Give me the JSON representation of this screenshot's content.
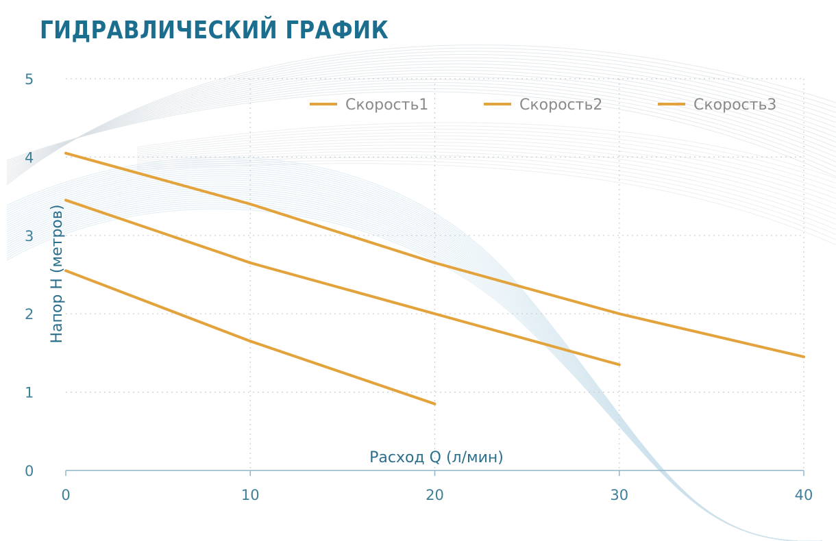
{
  "chart_data": {
    "type": "line",
    "title": "ГИДРАВЛИЧЕСКИЙ ГРАФИК",
    "xlabel": "Расход Q (л/мин)",
    "ylabel": "Напор H (метров)",
    "xlim": [
      0,
      40
    ],
    "ylim": [
      0,
      5
    ],
    "xticks": [
      0,
      10,
      20,
      30,
      40
    ],
    "yticks": [
      0,
      1,
      2,
      3,
      4,
      5
    ],
    "grid": true,
    "legend_position": "top-right",
    "series": [
      {
        "name": "Скорость1",
        "color": "#e3a33c",
        "points": [
          [
            0,
            4.05
          ],
          [
            10,
            3.4
          ],
          [
            20,
            2.65
          ],
          [
            30,
            2.0
          ],
          [
            40,
            1.45
          ]
        ]
      },
      {
        "name": "Скорость2",
        "color": "#e3a33c",
        "points": [
          [
            0,
            3.45
          ],
          [
            10,
            2.65
          ],
          [
            20,
            2.0
          ],
          [
            30,
            1.35
          ]
        ]
      },
      {
        "name": "Скорость3",
        "color": "#e3a33c",
        "points": [
          [
            0,
            2.55
          ],
          [
            10,
            1.65
          ],
          [
            20,
            0.85
          ]
        ]
      }
    ]
  }
}
